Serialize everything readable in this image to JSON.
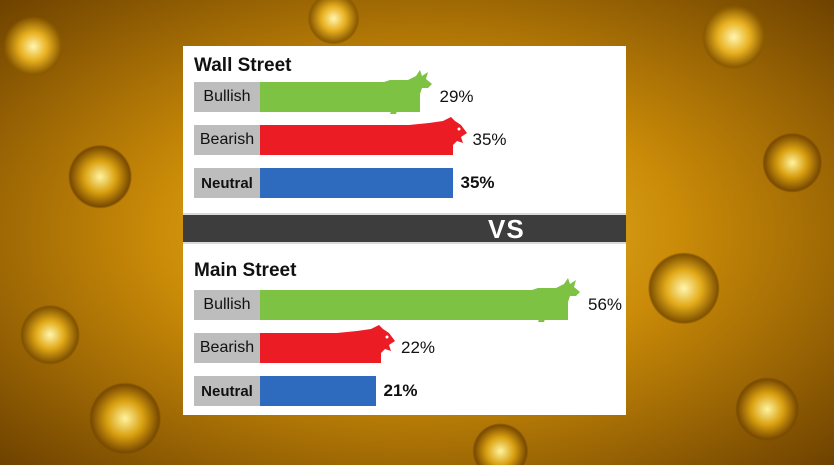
{
  "chart_data": [
    {
      "type": "bar",
      "title": "Wall Street",
      "orientation": "horizontal",
      "categories": [
        "Bullish",
        "Bearish",
        "Neutral"
      ],
      "values": [
        29,
        35,
        35
      ],
      "value_labels": [
        "29%",
        "35%",
        "35%"
      ],
      "xlim": [
        0,
        100
      ],
      "colors": [
        "#7dc242",
        "#ec1c24",
        "#2e6bbf"
      ],
      "grid": false
    },
    {
      "type": "bar",
      "title": "Main Street",
      "orientation": "horizontal",
      "categories": [
        "Bullish",
        "Bearish",
        "Neutral"
      ],
      "values": [
        56,
        22,
        21
      ],
      "value_labels": [
        "56%",
        "22%",
        "21%"
      ],
      "xlim": [
        0,
        100
      ],
      "colors": [
        "#7dc242",
        "#ec1c24",
        "#2e6bbf"
      ],
      "grid": false
    }
  ],
  "divider": {
    "text": "VS"
  },
  "icons": {
    "bullish": "bull-icon",
    "bearish": "bear-icon"
  }
}
